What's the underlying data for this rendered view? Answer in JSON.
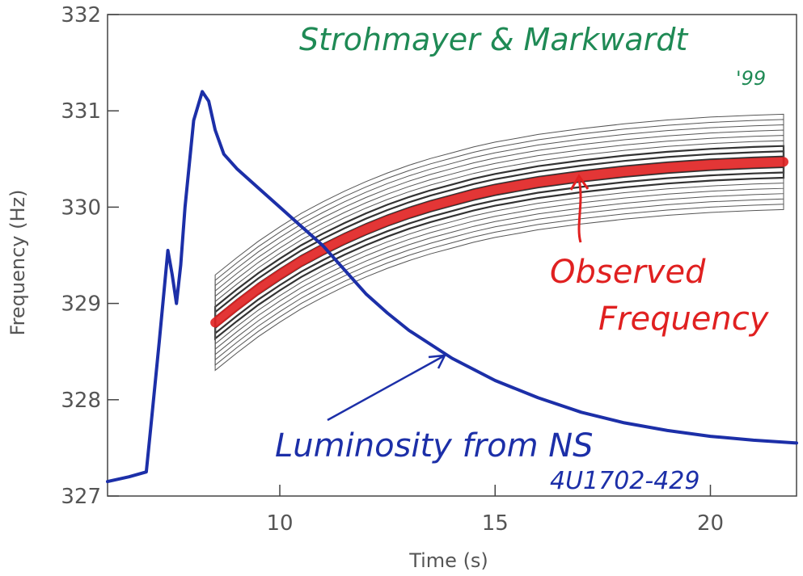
{
  "chart_data": {
    "type": "line",
    "xlabel": "Time (s)",
    "ylabel": "Frequency (Hz)",
    "xlim": [
      6.0,
      22.0
    ],
    "ylim": [
      327.0,
      332.0
    ],
    "x_ticks": [
      10,
      15,
      20
    ],
    "y_ticks": [
      327,
      328,
      329,
      330,
      331,
      332
    ],
    "grid": false,
    "series": [
      {
        "name": "Observed Frequency",
        "color": "#e02020",
        "x": [
          8.5,
          9.0,
          9.5,
          10.0,
          10.5,
          11.0,
          11.5,
          12.0,
          12.5,
          13.0,
          13.5,
          14.0,
          14.5,
          15.0,
          15.5,
          16.0,
          17.0,
          18.0,
          19.0,
          20.0,
          21.0,
          21.7
        ],
        "y": [
          328.8,
          328.98,
          329.15,
          329.3,
          329.44,
          329.56,
          329.67,
          329.77,
          329.86,
          329.94,
          330.01,
          330.07,
          330.13,
          330.18,
          330.22,
          330.26,
          330.32,
          330.37,
          330.41,
          330.44,
          330.46,
          330.47
        ]
      },
      {
        "name": "Luminosity from NS",
        "color": "#1c2fa8",
        "x": [
          6.0,
          6.5,
          6.9,
          7.0,
          7.2,
          7.4,
          7.5,
          7.6,
          7.7,
          7.8,
          8.0,
          8.2,
          8.35,
          8.5,
          8.7,
          9.0,
          9.5,
          10.0,
          10.5,
          11.0,
          11.5,
          12.0,
          12.5,
          13.0,
          14.0,
          15.0,
          16.0,
          17.0,
          18.0,
          19.0,
          20.0,
          21.0,
          22.0
        ],
        "y": [
          327.15,
          327.2,
          327.25,
          327.7,
          328.6,
          329.55,
          329.3,
          329.0,
          329.4,
          330.0,
          330.9,
          331.2,
          331.1,
          330.8,
          330.55,
          330.4,
          330.2,
          330.0,
          329.8,
          329.6,
          329.35,
          329.1,
          328.9,
          328.72,
          328.43,
          328.2,
          328.02,
          327.87,
          327.76,
          327.68,
          327.62,
          327.58,
          327.55
        ]
      }
    ],
    "annotations": {
      "credit": "Strohmayer & Markwardt",
      "year": "'99",
      "observed": [
        "Observed",
        "Frequency"
      ],
      "luminosity": "Luminosity from NS",
      "source": "4U1702-429"
    }
  }
}
